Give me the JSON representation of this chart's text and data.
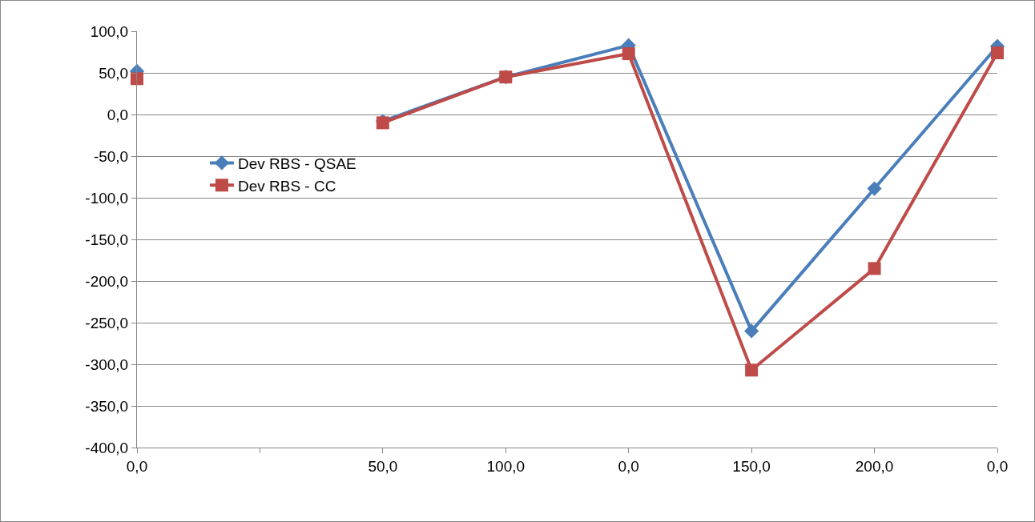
{
  "chart_data": {
    "type": "line",
    "categories": [
      "0,0",
      null,
      "50,0",
      "100,0",
      "0,0",
      "150,0",
      "200,0",
      "0,0"
    ],
    "series": [
      {
        "name": "Dev RBS - QSAE",
        "color": "#4a7ebb",
        "marker": "diamond",
        "values": [
          52,
          null,
          -8,
          45,
          83,
          -260,
          -89,
          82
        ]
      },
      {
        "name": "Dev RBS - CC",
        "color": "#be4b48",
        "marker": "square",
        "values": [
          43,
          null,
          -10,
          45,
          73,
          -307,
          -185,
          74
        ]
      }
    ],
    "ylim": [
      -400,
      100
    ],
    "yticks": [
      {
        "value": -400,
        "label": "-400,0"
      },
      {
        "value": -350,
        "label": "-350,0"
      },
      {
        "value": -300,
        "label": "-300,0"
      },
      {
        "value": -250,
        "label": "-250,0"
      },
      {
        "value": -200,
        "label": "-200,0"
      },
      {
        "value": -150,
        "label": "-150,0"
      },
      {
        "value": -100,
        "label": "-100,0"
      },
      {
        "value": -50,
        "label": "-50,0"
      },
      {
        "value": 0,
        "label": "0,0"
      },
      {
        "value": 50,
        "label": "50,0"
      },
      {
        "value": 100,
        "label": "100,0"
      }
    ],
    "grid": "y",
    "legend": "left",
    "line_style": "solid"
  }
}
